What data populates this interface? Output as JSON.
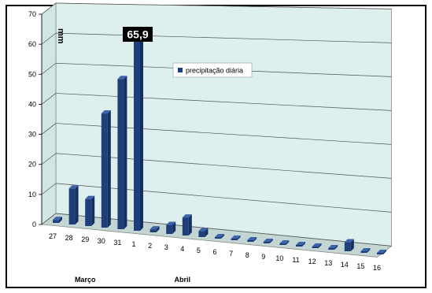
{
  "chart_data": {
    "type": "bar",
    "style": "3d-column",
    "categories": [
      "27",
      "28",
      "29",
      "30",
      "31",
      "1",
      "2",
      "3",
      "4",
      "5",
      "6",
      "7",
      "8",
      "9",
      "10",
      "11",
      "12",
      "13",
      "14",
      "15",
      "16"
    ],
    "series": [
      {
        "name": "precipitação diária",
        "values": [
          1,
          12,
          9,
          38,
          50,
          65.9,
          1,
          3,
          6,
          2,
          0,
          0,
          0,
          0,
          0,
          0,
          0,
          0,
          3,
          0,
          0
        ]
      }
    ],
    "month_labels": [
      {
        "label": "Março",
        "category": "29"
      },
      {
        "label": "Abril",
        "category": "4"
      }
    ],
    "y_unit_label": "mm",
    "y_ticks": [
      "0",
      "10",
      "20",
      "30",
      "40",
      "50",
      "60",
      "70"
    ],
    "ylim": [
      0,
      70
    ],
    "highlight": {
      "category": "1",
      "label": "65,9"
    },
    "legend_position": "inside-top-center",
    "grid": true,
    "colors": {
      "bar_front": "#1f3f7a",
      "bar_side": "#15305f",
      "bar_top": "#3b64ad",
      "plot_back": "#ddf0ee",
      "plot_side": "#cfe6e3",
      "plot_floor": "#c3d6d4",
      "callout_bg": "#000000"
    }
  }
}
